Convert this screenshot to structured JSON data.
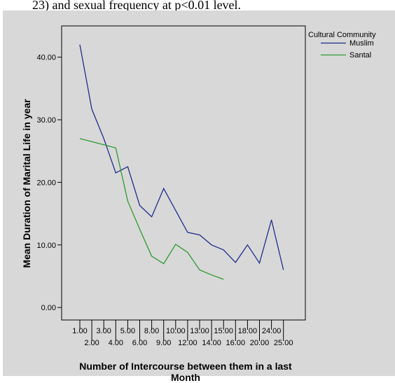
{
  "caption_fragment": "23) and sexual frequency at p<0.01 level.",
  "chart_data": {
    "type": "line",
    "xlabel": "Number of Intercourse between them in a last Month",
    "ylabel": "Mean Duration of Marital Life in year",
    "categories": [
      "1.00",
      "2.00",
      "3.00",
      "4.00",
      "5.00",
      "6.00",
      "8.00",
      "9.00",
      "10.00",
      "12.00",
      "13.00",
      "14.00",
      "15.00",
      "16.00",
      "18.00",
      "20.00",
      "24.00",
      "25.00"
    ],
    "ylim": [
      -2,
      45
    ],
    "yticks": [
      0,
      10,
      20,
      30,
      40
    ],
    "ytick_labels": [
      "0.00",
      "10.00",
      "20.00",
      "30.00",
      "40.00"
    ],
    "legend": {
      "title": "Cultural Community",
      "position": "top-right"
    },
    "series": [
      {
        "name": "Muslim",
        "color": "#1f2f8c",
        "values": [
          42.0,
          31.7,
          27.0,
          21.5,
          22.5,
          16.3,
          14.5,
          19.0,
          15.5,
          12.0,
          11.6,
          10.0,
          9.2,
          7.2,
          10.0,
          7.1,
          14.0,
          6.0
        ]
      },
      {
        "name": "Santal",
        "color": "#2e9a2e",
        "values": [
          27.0,
          26.5,
          26.0,
          25.5,
          17.0,
          12.5,
          8.2,
          7.0,
          10.1,
          8.8,
          6.0,
          5.2,
          4.5,
          null,
          null,
          null,
          null,
          null
        ]
      }
    ]
  }
}
